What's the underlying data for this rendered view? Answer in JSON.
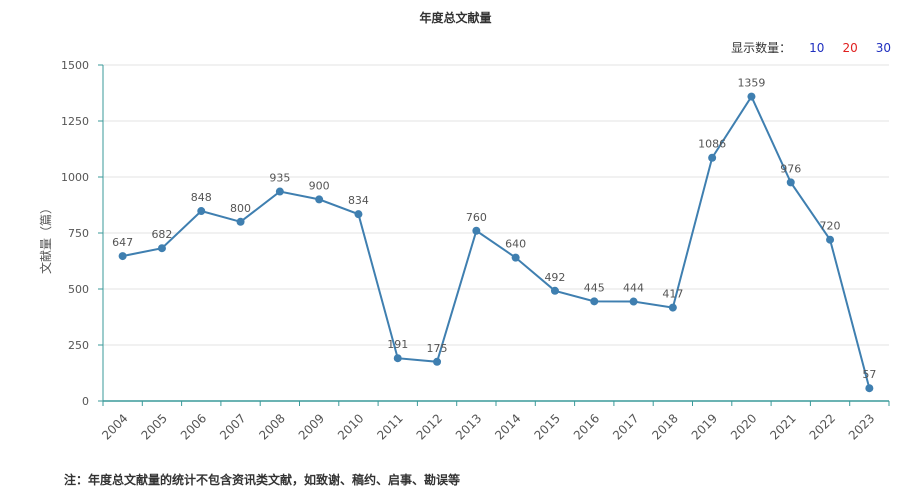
{
  "chart_data": {
    "type": "line",
    "title": "年度总文献量",
    "ylabel": "文献量（篇）",
    "xlabel": "",
    "ylim": [
      0,
      1500
    ],
    "yticks": [
      0,
      250,
      500,
      750,
      1000,
      1250,
      1500
    ],
    "x": [
      "2004",
      "2005",
      "2006",
      "2007",
      "2008",
      "2009",
      "2010",
      "2011",
      "2012",
      "2013",
      "2014",
      "2015",
      "2016",
      "2017",
      "2018",
      "2019",
      "2020",
      "2021",
      "2022",
      "2023"
    ],
    "series": [
      {
        "values": [
          647,
          682,
          848,
          800,
          935,
          900,
          834,
          191,
          175,
          760,
          640,
          492,
          445,
          444,
          417,
          1086,
          1359,
          976,
          720,
          57
        ]
      }
    ],
    "grid": true,
    "line_color": "#3f7fb0"
  },
  "controls": {
    "label": "显示数量：",
    "options": [
      {
        "label": "10",
        "color": "#1f2fbf"
      },
      {
        "label": "20",
        "color": "#e0201f"
      },
      {
        "label": "30",
        "color": "#1f2fbf"
      }
    ]
  },
  "footnote": "注：年度总文献量的统计不包含资讯类文献，如致谢、稿约、启事、勘误等"
}
